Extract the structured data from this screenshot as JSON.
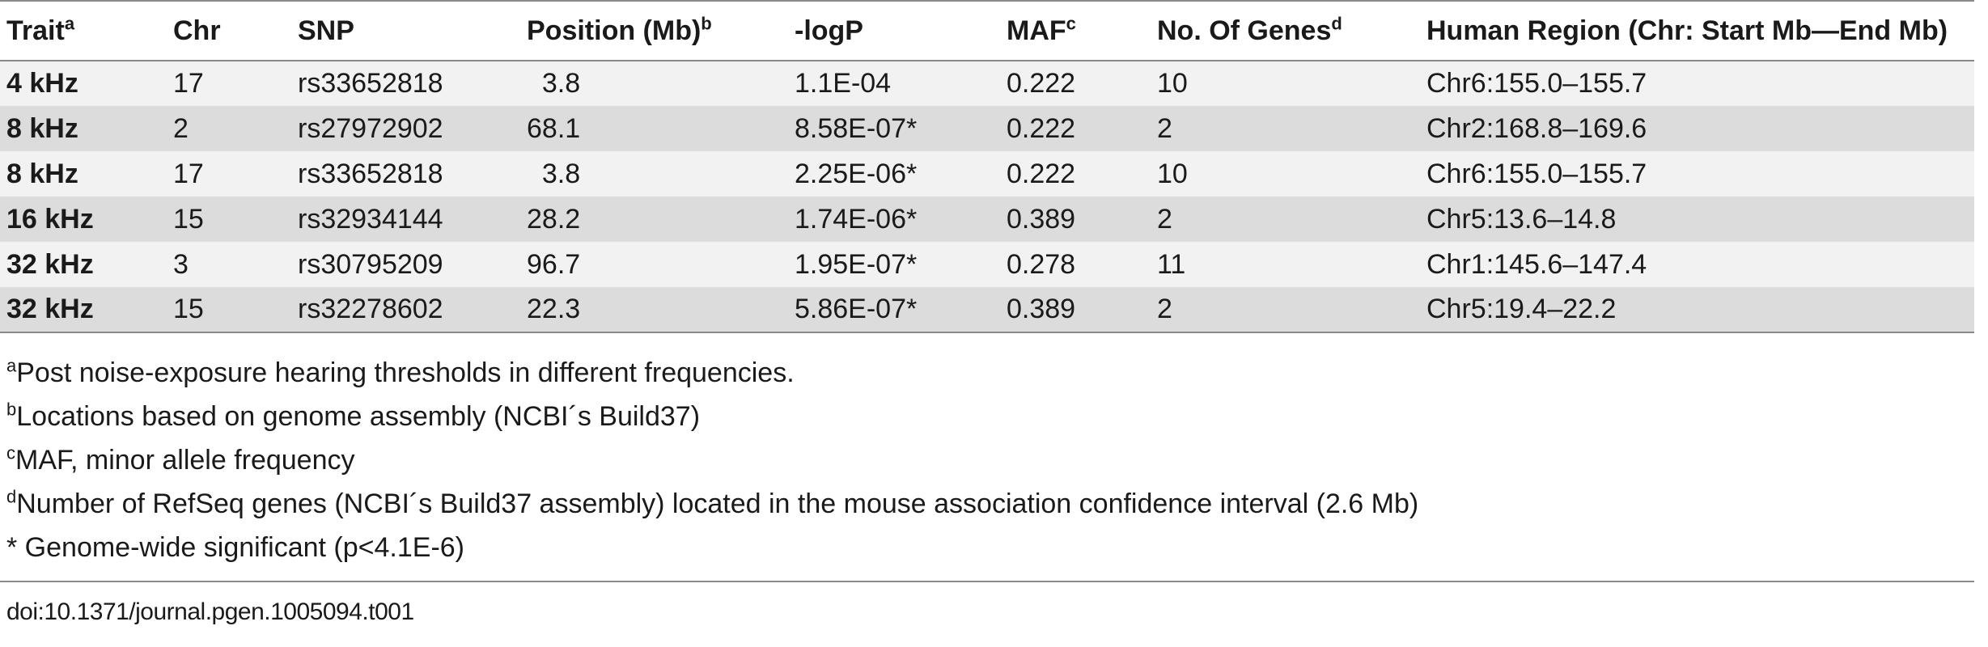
{
  "table": {
    "headers": [
      {
        "label": "Trait",
        "sup": "a"
      },
      {
        "label": "Chr",
        "sup": ""
      },
      {
        "label": "SNP",
        "sup": ""
      },
      {
        "label": "Position (Mb)",
        "sup": "b"
      },
      {
        "label": "-logP",
        "sup": ""
      },
      {
        "label": "MAF",
        "sup": "c"
      },
      {
        "label": "No. Of Genes",
        "sup": "d"
      },
      {
        "label": "Human Region (Chr: Start Mb—End Mb)",
        "sup": ""
      }
    ],
    "rows": [
      [
        "4 kHz",
        "17",
        "rs33652818",
        "  3.8",
        "1.1E-04",
        "0.222",
        "10",
        "Chr6:155.0–155.7"
      ],
      [
        "8 kHz",
        "2",
        "rs27972902",
        "68.1",
        "8.58E-07*",
        "0.222",
        "2",
        "Chr2:168.8–169.6"
      ],
      [
        "8 kHz",
        "17",
        "rs33652818",
        "  3.8",
        "2.25E-06*",
        "0.222",
        "10",
        "Chr6:155.0–155.7"
      ],
      [
        "16 kHz",
        "15",
        "rs32934144",
        "28.2",
        "1.74E-06*",
        "0.389",
        "2",
        "Chr5:13.6–14.8"
      ],
      [
        "32 kHz",
        "3",
        "rs30795209",
        "96.7",
        "1.95E-07*",
        "0.278",
        "11",
        "Chr1:145.6–147.4"
      ],
      [
        "32 kHz",
        "15",
        "rs32278602",
        "22.3",
        "5.86E-07*",
        "0.389",
        "2",
        "Chr5:19.4–22.2"
      ]
    ]
  },
  "footnotes": [
    {
      "sup": "a",
      "text": "Post noise-exposure hearing thresholds in different frequencies."
    },
    {
      "sup": "b",
      "text": "Locations based on genome assembly (NCBI´s Build37)"
    },
    {
      "sup": "c",
      "text": "MAF, minor allele frequency"
    },
    {
      "sup": "d",
      "text": "Number of RefSeq genes (NCBI´s Build37 assembly) located in the mouse association confidence interval (2.6 Mb)"
    },
    {
      "sup": "",
      "text": "* Genome-wide significant (p<4.1E-6)"
    }
  ],
  "doi": "doi:10.1371/journal.pgen.1005094.t001"
}
